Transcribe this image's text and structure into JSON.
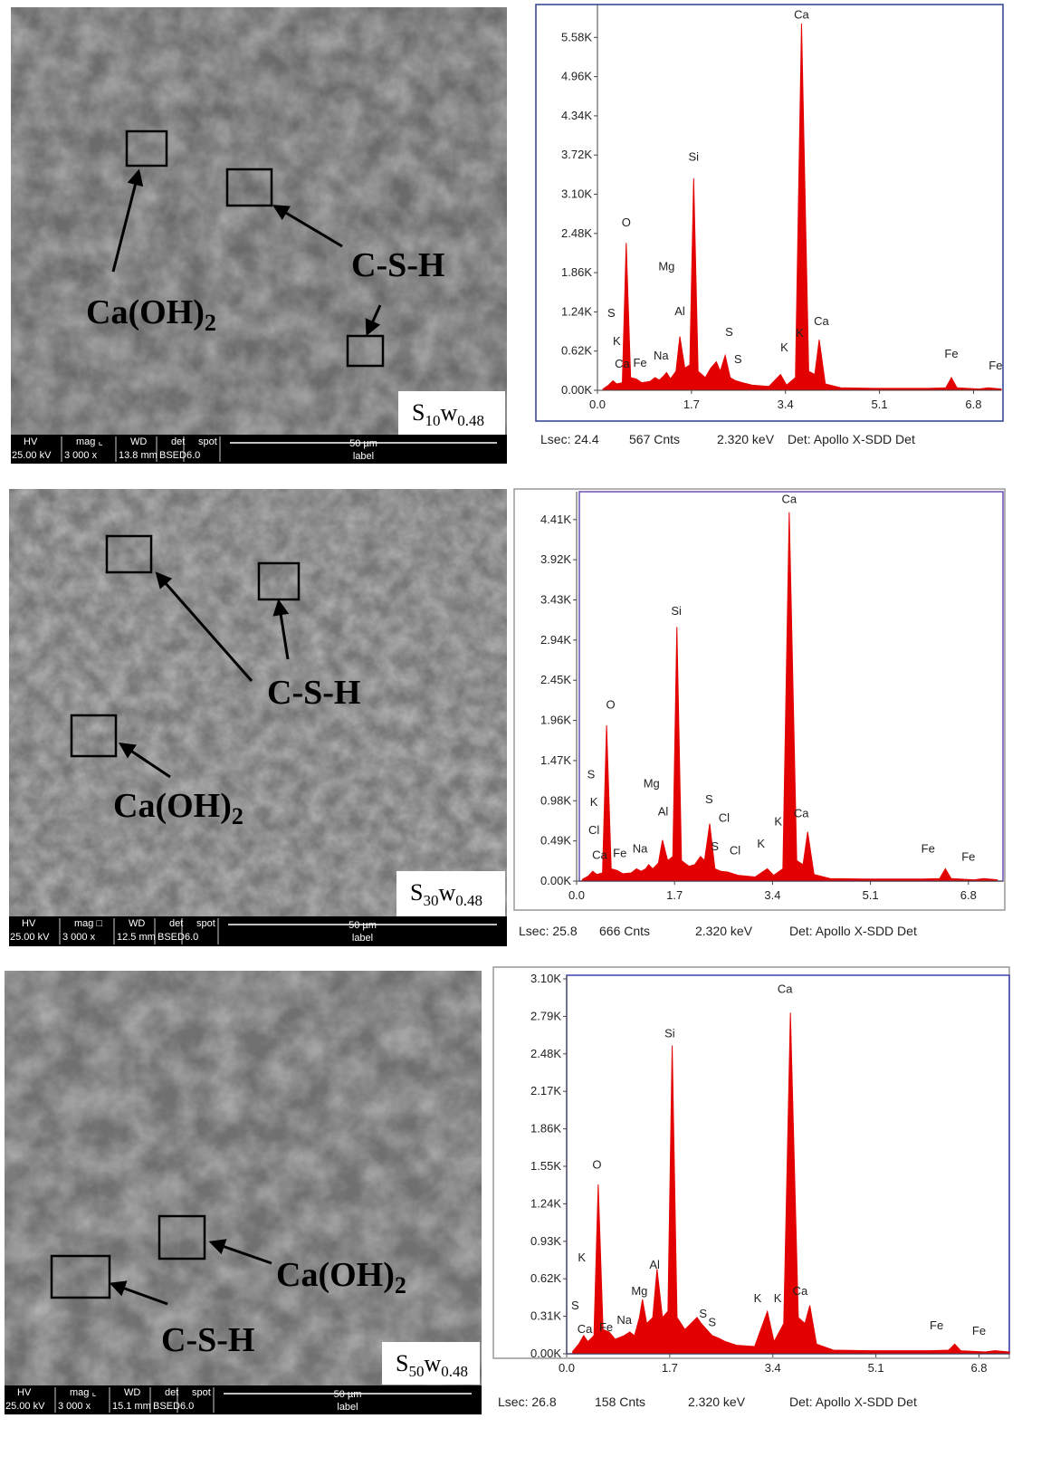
{
  "chart_data": [
    {
      "type": "area",
      "color": "#e30000",
      "x": [
        0.1,
        0.2,
        0.28,
        0.35,
        0.45,
        0.52,
        0.6,
        0.7,
        0.8,
        0.95,
        1.04,
        1.12,
        1.2,
        1.25,
        1.32,
        1.42,
        1.49,
        1.58,
        1.67,
        1.74,
        1.82,
        1.95,
        2.05,
        2.15,
        2.22,
        2.31,
        2.4,
        2.5,
        2.62,
        2.8,
        3.1,
        3.31,
        3.42,
        3.58,
        3.69,
        3.82,
        3.93,
        4.01,
        4.12,
        4.4,
        5.0,
        6.0,
        6.3,
        6.4,
        6.5,
        6.9,
        7.06,
        7.3
      ],
      "values": [
        20,
        80,
        150,
        100,
        120,
        2330,
        200,
        180,
        120,
        140,
        200,
        160,
        230,
        280,
        180,
        300,
        850,
        350,
        400,
        3350,
        300,
        200,
        350,
        450,
        300,
        550,
        200,
        150,
        120,
        80,
        60,
        250,
        80,
        200,
        5800,
        300,
        250,
        800,
        100,
        40,
        30,
        30,
        40,
        200,
        40,
        20,
        40,
        20
      ],
      "xlim": [
        0,
        7.3
      ],
      "ylim": [
        0,
        6100
      ],
      "xticks": [
        {
          "value": 0,
          "label": "0.0"
        },
        1.7,
        3.4,
        5.1,
        6.8
      ],
      "yticks": [
        {
          "value": 0,
          "label": "0.00K"
        },
        {
          "value": 620,
          "label": "0.62K"
        },
        {
          "value": 1240,
          "label": "1.24K"
        },
        {
          "value": 1860,
          "label": "1.86K"
        },
        {
          "value": 2480,
          "label": "2.48K"
        },
        {
          "value": 3100,
          "label": "3.10K"
        },
        {
          "value": 3720,
          "label": "3.72K"
        },
        {
          "value": 4340,
          "label": "4.34K"
        },
        {
          "value": 4960,
          "label": "4.96K"
        },
        {
          "value": 5580,
          "label": "5.58K"
        }
      ],
      "annotations": [
        {
          "text": "Ca",
          "x": 3.69,
          "y": 5880
        },
        {
          "text": "Si",
          "x": 1.74,
          "y": 3630
        },
        {
          "text": "O",
          "x": 0.52,
          "y": 2590
        },
        {
          "text": "Mg",
          "x": 1.25,
          "y": 1900
        },
        {
          "text": "Al",
          "x": 1.49,
          "y": 1190
        },
        {
          "text": "S",
          "x": 0.25,
          "y": 1160
        },
        {
          "text": "K",
          "x": 0.35,
          "y": 715
        },
        {
          "text": "Ca",
          "x": 0.45,
          "y": 360
        },
        {
          "text": "Fe",
          "x": 0.77,
          "y": 370
        },
        {
          "text": "Na",
          "x": 1.15,
          "y": 490
        },
        {
          "text": "S",
          "x": 2.38,
          "y": 860
        },
        {
          "text": "S",
          "x": 2.54,
          "y": 430
        },
        {
          "text": "K",
          "x": 3.38,
          "y": 615
        },
        {
          "text": "K",
          "x": 3.66,
          "y": 845
        },
        {
          "text": "Ca",
          "x": 4.05,
          "y": 1030
        },
        {
          "text": "Fe",
          "x": 6.4,
          "y": 515
        },
        {
          "text": "Fe",
          "x": 7.2,
          "y": 330
        }
      ],
      "footer": [
        "Lsec: 24.4",
        "567 Cnts",
        "2.320 keV",
        "Det: Apollo X-SDD Det"
      ]
    },
    {
      "type": "area",
      "color": "#e30000",
      "x": [
        0.1,
        0.2,
        0.28,
        0.35,
        0.45,
        0.52,
        0.6,
        0.7,
        0.8,
        0.95,
        1.04,
        1.12,
        1.2,
        1.25,
        1.32,
        1.42,
        1.49,
        1.58,
        1.67,
        1.74,
        1.82,
        1.95,
        2.05,
        2.15,
        2.22,
        2.31,
        2.4,
        2.5,
        2.62,
        2.8,
        3.1,
        3.31,
        3.42,
        3.58,
        3.69,
        3.82,
        3.93,
        4.01,
        4.12,
        4.4,
        5.0,
        6.0,
        6.3,
        6.4,
        6.5,
        6.9,
        7.06,
        7.3
      ],
      "values": [
        20,
        60,
        120,
        80,
        100,
        1900,
        150,
        130,
        90,
        100,
        150,
        120,
        150,
        200,
        150,
        220,
        500,
        250,
        300,
        3100,
        250,
        180,
        200,
        300,
        250,
        700,
        150,
        120,
        110,
        70,
        50,
        150,
        70,
        150,
        4500,
        250,
        200,
        600,
        80,
        30,
        25,
        25,
        30,
        150,
        30,
        15,
        30,
        15
      ],
      "xlim": [
        0,
        7.4
      ],
      "ylim": [
        0,
        4750
      ],
      "xticks": [
        {
          "value": 0,
          "label": "0.0"
        },
        1.7,
        3.4,
        5.1,
        6.8
      ],
      "yticks": [
        {
          "value": 0,
          "label": "0.00K"
        },
        {
          "value": 490,
          "label": "0.49K"
        },
        {
          "value": 980,
          "label": "0.98K"
        },
        {
          "value": 1470,
          "label": "1.47K"
        },
        {
          "value": 1960,
          "label": "1.96K"
        },
        {
          "value": 2450,
          "label": "2.45K"
        },
        {
          "value": 2940,
          "label": "2.94K"
        },
        {
          "value": 3430,
          "label": "3.43K"
        },
        {
          "value": 3920,
          "label": "3.92K"
        },
        {
          "value": 4410,
          "label": "4.41K"
        }
      ],
      "annotations": [
        {
          "text": "Ca",
          "x": 3.69,
          "y": 4613
        },
        {
          "text": "Si",
          "x": 1.73,
          "y": 3245
        },
        {
          "text": "O",
          "x": 0.59,
          "y": 2103
        },
        {
          "text": "Mg",
          "x": 1.3,
          "y": 1142
        },
        {
          "text": "Al",
          "x": 1.5,
          "y": 803
        },
        {
          "text": "S",
          "x": 0.25,
          "y": 1255
        },
        {
          "text": "K",
          "x": 0.3,
          "y": 916
        },
        {
          "text": "Cl",
          "x": 0.3,
          "y": 577
        },
        {
          "text": "Ca",
          "x": 0.4,
          "y": 271
        },
        {
          "text": "Fe",
          "x": 0.75,
          "y": 294
        },
        {
          "text": "Na",
          "x": 1.1,
          "y": 350
        },
        {
          "text": "S",
          "x": 2.3,
          "y": 950
        },
        {
          "text": "Cl",
          "x": 2.56,
          "y": 724
        },
        {
          "text": "S",
          "x": 2.4,
          "y": 373
        },
        {
          "text": "Cl",
          "x": 2.75,
          "y": 328
        },
        {
          "text": "K",
          "x": 3.2,
          "y": 407
        },
        {
          "text": "K",
          "x": 3.5,
          "y": 678
        },
        {
          "text": "Ca",
          "x": 3.9,
          "y": 780
        },
        {
          "text": "Fe",
          "x": 6.1,
          "y": 350
        },
        {
          "text": "Fe",
          "x": 6.8,
          "y": 249
        }
      ],
      "footer": [
        "Lsec: 25.8",
        "666 Cnts",
        "2.320 keV",
        "Det: Apollo X-SDD Det"
      ]
    },
    {
      "type": "area",
      "color": "#e30000",
      "x": [
        0.1,
        0.2,
        0.28,
        0.35,
        0.45,
        0.52,
        0.6,
        0.7,
        0.8,
        0.95,
        1.04,
        1.12,
        1.2,
        1.25,
        1.32,
        1.42,
        1.49,
        1.58,
        1.67,
        1.74,
        1.82,
        1.95,
        2.05,
        2.15,
        2.22,
        2.31,
        2.4,
        2.5,
        2.62,
        2.8,
        3.1,
        3.31,
        3.42,
        3.58,
        3.69,
        3.82,
        3.93,
        4.01,
        4.12,
        4.4,
        5.0,
        6.0,
        6.3,
        6.4,
        6.5,
        6.9,
        7.06,
        7.3
      ],
      "values": [
        20,
        80,
        150,
        100,
        150,
        1400,
        200,
        180,
        120,
        150,
        180,
        150,
        300,
        450,
        250,
        300,
        700,
        300,
        350,
        2550,
        300,
        200,
        250,
        300,
        250,
        200,
        150,
        130,
        100,
        70,
        60,
        350,
        100,
        250,
        2820,
        300,
        250,
        400,
        80,
        30,
        25,
        25,
        30,
        80,
        25,
        15,
        25,
        15
      ],
      "xlim": [
        0,
        7.3
      ],
      "ylim": [
        0,
        3130
      ],
      "xticks": [
        {
          "value": 0,
          "label": "0.0"
        },
        1.7,
        3.4,
        5.1,
        6.8
      ],
      "yticks": [
        {
          "value": 0,
          "label": "0.00K"
        },
        {
          "value": 310,
          "label": "0.31K"
        },
        {
          "value": 620,
          "label": "0.62K"
        },
        {
          "value": 930,
          "label": "0.93K"
        },
        {
          "value": 1240,
          "label": "1.24K"
        },
        {
          "value": 1550,
          "label": "1.55K"
        },
        {
          "value": 1860,
          "label": "1.86K"
        },
        {
          "value": 2170,
          "label": "2.17K"
        },
        {
          "value": 2480,
          "label": "2.48K"
        },
        {
          "value": 2790,
          "label": "2.79K"
        },
        {
          "value": 3100,
          "label": "3.10K"
        }
      ],
      "annotations": [
        {
          "text": "Ca",
          "x": 3.6,
          "y": 2985
        },
        {
          "text": "Si",
          "x": 1.7,
          "y": 2618
        },
        {
          "text": "O",
          "x": 0.5,
          "y": 1533
        },
        {
          "text": "K",
          "x": 0.25,
          "y": 763
        },
        {
          "text": "Al",
          "x": 1.45,
          "y": 703
        },
        {
          "text": "Mg",
          "x": 1.2,
          "y": 486
        },
        {
          "text": "S",
          "x": 0.14,
          "y": 367
        },
        {
          "text": "Na",
          "x": 0.95,
          "y": 247
        },
        {
          "text": "Ca",
          "x": 0.3,
          "y": 172
        },
        {
          "text": "Fe",
          "x": 0.65,
          "y": 187
        },
        {
          "text": "S",
          "x": 2.25,
          "y": 300
        },
        {
          "text": "S",
          "x": 2.4,
          "y": 230
        },
        {
          "text": "K",
          "x": 3.15,
          "y": 426
        },
        {
          "text": "K",
          "x": 3.48,
          "y": 426
        },
        {
          "text": "Ca",
          "x": 3.85,
          "y": 486
        },
        {
          "text": "Fe",
          "x": 6.1,
          "y": 202
        },
        {
          "text": "Fe",
          "x": 6.8,
          "y": 157
        }
      ],
      "footer": [
        "Lsec: 26.8",
        "158 Cnts",
        "2.320 keV",
        "Det: Apollo X-SDD Det"
      ]
    }
  ],
  "micrographs": [
    {
      "sample": {
        "s": "S",
        "s_sub": "10",
        "w": "w",
        "w_sub": "0.48"
      },
      "calcium_hydroxide": {
        "text": "Ca(OH)",
        "sub": "2"
      },
      "csh": "C-S-H",
      "bar": {
        "headers": [
          "HV",
          "mag ⌞",
          "WD",
          "det",
          "spot"
        ],
        "values": [
          "25.00 kV",
          "3 000 x",
          "13.8 mm",
          "BSED",
          "6.0"
        ],
        "scale": "50 µm",
        "label": "label"
      }
    },
    {
      "sample": {
        "s": "S",
        "s_sub": "30",
        "w": "w",
        "w_sub": "0.48"
      },
      "calcium_hydroxide": {
        "text": "Ca(OH)",
        "sub": "2"
      },
      "csh": "C-S-H",
      "bar": {
        "headers": [
          "HV",
          "mag □",
          "WD",
          "det",
          "spot"
        ],
        "values": [
          "25.00 kV",
          "3 000 x",
          "12.5 mm",
          "BSED",
          "6.0"
        ],
        "scale": "50 µm",
        "label": "label"
      }
    },
    {
      "sample": {
        "s": "S",
        "s_sub": "50",
        "w": "w",
        "w_sub": "0.48"
      },
      "calcium_hydroxide": {
        "text": "Ca(OH)",
        "sub": "2"
      },
      "csh": "C-S-H",
      "bar": {
        "headers": [
          "HV",
          "mag ⌞",
          "WD",
          "det",
          "spot"
        ],
        "values": [
          "25.00 kV",
          "3 000 x",
          "15.1 mm",
          "BSED",
          "6.0"
        ],
        "scale": "50 µm",
        "label": "label"
      }
    }
  ]
}
